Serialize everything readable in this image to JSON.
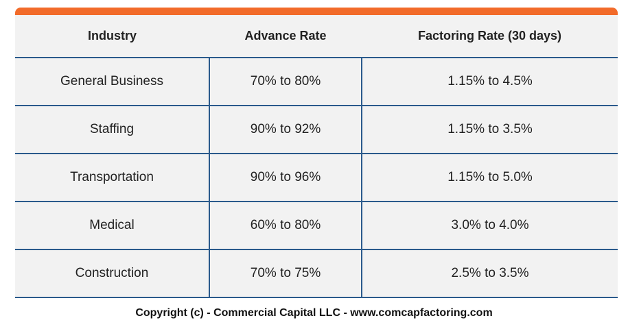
{
  "table": {
    "header": [
      "Industry",
      "Advance Rate",
      "Factoring Rate (30 days)"
    ],
    "rows": [
      [
        "General Business",
        "70% to 80%",
        "1.15% to 4.5%"
      ],
      [
        "Staffing",
        "90% to 92%",
        "1.15% to 3.5%"
      ],
      [
        "Transportation",
        "90% to 96%",
        "1.15% to 5.0%"
      ],
      [
        "Medical",
        "60% to 80%",
        "3.0% to 4.0%"
      ],
      [
        "Construction",
        "70% to 75%",
        "2.5% to 3.5%"
      ]
    ]
  },
  "footer": "Copyright (c) - Commercial Capital LLC - www.comcapfactoring.com"
}
